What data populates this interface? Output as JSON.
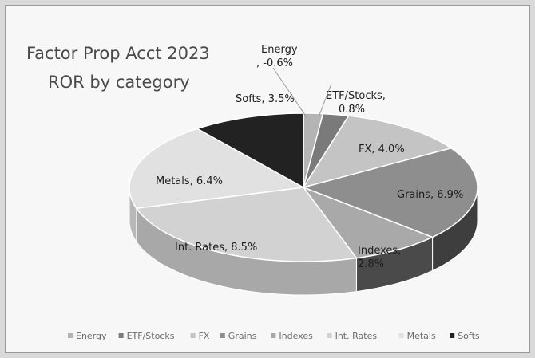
{
  "chart_data": {
    "type": "pie",
    "title_lines": [
      "Factor Prop Acct 2023",
      "ROR by category"
    ],
    "categories": [
      "Energy",
      "ETF/Stocks",
      "FX",
      "Grains",
      "Indexes",
      "Int. Rates",
      "Metals",
      "Softs"
    ],
    "values": [
      -0.6,
      0.8,
      4.0,
      6.9,
      2.8,
      8.5,
      6.4,
      3.5
    ],
    "data_labels": [
      [
        "Energy",
        ", -0.6%"
      ],
      [
        "ETF/Stocks,",
        "0.8%"
      ],
      [
        "FX, 4.0%"
      ],
      [
        "Grains, 6.9%"
      ],
      [
        "Indexes,",
        "2.8%"
      ],
      [
        "Int. Rates, 8.5%"
      ],
      [
        "Metals, 6.4%"
      ],
      [
        "Softs, 3.5%"
      ]
    ],
    "legend_position": "bottom",
    "style": "3d-pie",
    "colors": [
      "#b4b4b4",
      "#7a7a7a",
      "#c4c4c4",
      "#8e8e8e",
      "#a9a9a9",
      "#d2d2d2",
      "#e1e1e1",
      "#222222"
    ],
    "side_colors": [
      "#8a8a8a",
      "#555555",
      "#999999",
      "#3e3e3e",
      "#4a4a4a",
      "#a8a8a8",
      "#b8b8b8",
      "#111111"
    ]
  }
}
